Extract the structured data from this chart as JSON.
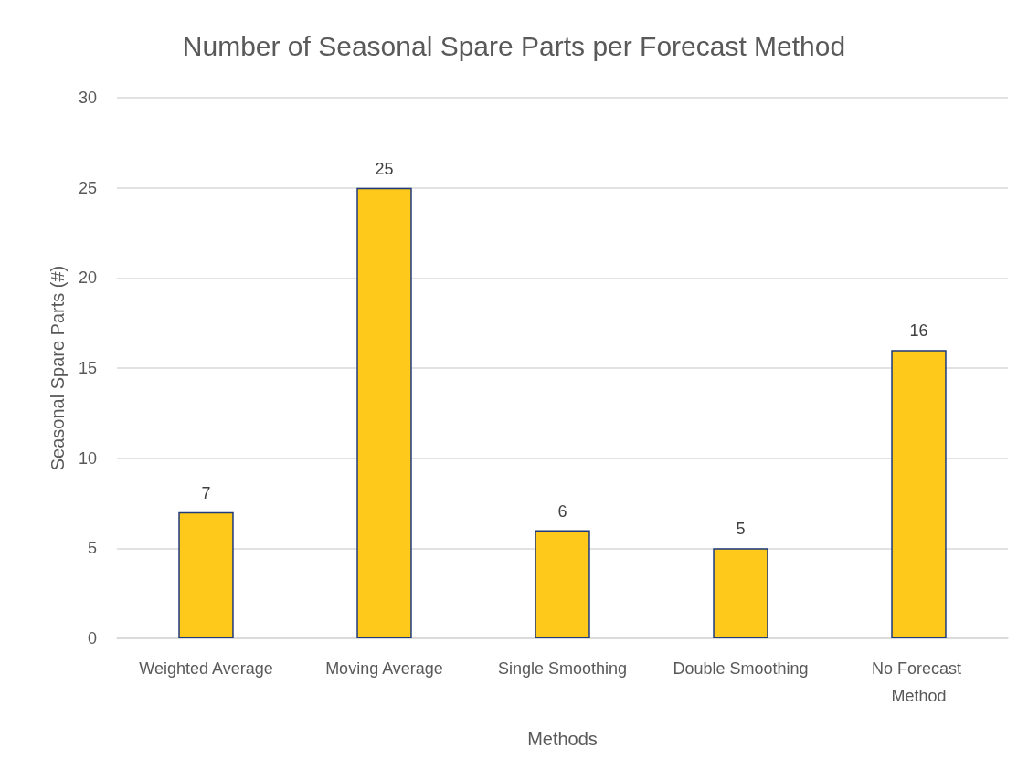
{
  "chart_data": {
    "type": "bar",
    "title": "Number of Seasonal Spare Parts per Forecast Method",
    "xlabel": "Methods",
    "ylabel": "Seasonal Spare Parts (#)",
    "categories": [
      "Weighted Average",
      "Moving Average",
      "Single Smoothing",
      "Double Smoothing",
      "No Forecast Method"
    ],
    "values": [
      7,
      25,
      6,
      5,
      16
    ],
    "color": "#ffc91b",
    "ylim": [
      0,
      30
    ],
    "yticks": [
      0,
      5,
      10,
      15,
      20,
      25,
      30
    ],
    "grid": "y",
    "data_labels": true
  }
}
